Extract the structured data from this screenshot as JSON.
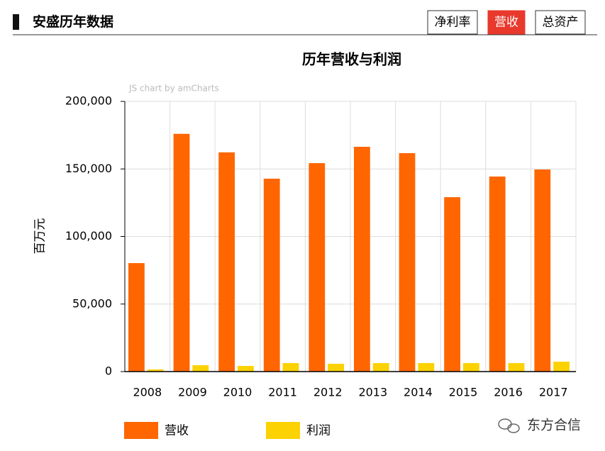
{
  "header": {
    "title": "安盛历年数据",
    "tabs": [
      "净利率",
      "营收",
      "总资产"
    ],
    "active_tab": 1
  },
  "chart_data": {
    "type": "bar",
    "title": "历年营收与利润",
    "y_label": "百万元",
    "categories": [
      "2008",
      "2009",
      "2010",
      "2011",
      "2012",
      "2013",
      "2014",
      "2015",
      "2016",
      "2017"
    ],
    "series": [
      {
        "name": "营收",
        "color": "#ff6600",
        "values": [
          80300,
          176000,
          162300,
          142800,
          154300,
          166400,
          161700,
          129100,
          144400,
          149600
        ]
      },
      {
        "name": "利润",
        "color": "#fcd202",
        "values": [
          1600,
          4700,
          4200,
          6300,
          5800,
          6300,
          6300,
          6300,
          6300,
          7300
        ]
      }
    ],
    "ylim": [
      0,
      200000
    ],
    "yticks": [
      0,
      {
        "value": 50000,
        "label": "50,000"
      },
      {
        "value": 100000,
        "label": "100,000"
      },
      {
        "value": 150000,
        "label": "150,000"
      },
      {
        "value": 200000,
        "label": "200,000"
      }
    ],
    "grid": true
  },
  "credit": "JS chart by amCharts",
  "watermark": "东方合信"
}
